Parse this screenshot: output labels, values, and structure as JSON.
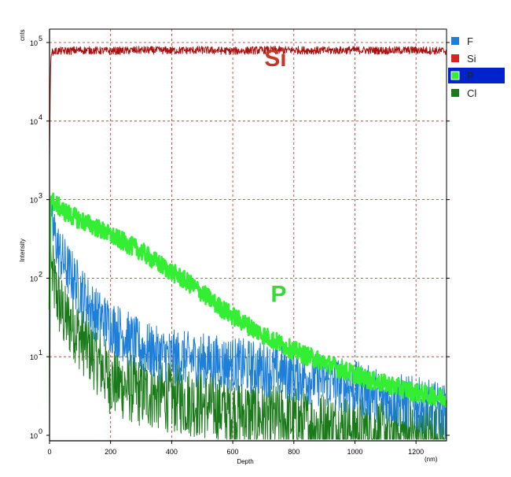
{
  "chart_data": {
    "type": "line",
    "title": "",
    "xlabel": "Depth",
    "ylabel": "Intensity",
    "y_unit": "cnts",
    "x_unit": "(nm)",
    "xlim": [
      0,
      1300
    ],
    "ylim": [
      0.8,
      100000
    ],
    "x_scale": "linear",
    "y_scale": "log",
    "grid": true,
    "legend_position": "right",
    "x_ticks": [
      0,
      200,
      400,
      600,
      800,
      1000,
      1200
    ],
    "y_ticks": [
      {
        "value": 1,
        "base": "10",
        "exp": "0"
      },
      {
        "value": 10,
        "base": "10",
        "exp": "1"
      },
      {
        "value": 100,
        "base": "10",
        "exp": "2"
      },
      {
        "value": 1000,
        "base": "10",
        "exp": "3"
      },
      {
        "value": 10000,
        "base": "10",
        "exp": "4"
      },
      {
        "value": 100000,
        "base": "10",
        "exp": "5"
      }
    ],
    "legend": [
      {
        "name": "F",
        "color": "#1e7fd8",
        "selected": false
      },
      {
        "name": "Si",
        "color": "#dd2222",
        "selected": false
      },
      {
        "name": "P",
        "color": "#33ee33",
        "selected": true
      },
      {
        "name": "Cl",
        "color": "#1a7a1a",
        "selected": false
      }
    ],
    "annotations": [
      {
        "text": "Si",
        "x": 740,
        "y": 60000,
        "color": "#c0392b"
      },
      {
        "text": "P",
        "x": 750,
        "y": 60,
        "color": "#33dd33"
      }
    ],
    "series": [
      {
        "name": "Si",
        "color": "#aa1111",
        "x": [
          0,
          2,
          4,
          6,
          10,
          20,
          50,
          100,
          200,
          300,
          400,
          500,
          600,
          700,
          800,
          900,
          1000,
          1100,
          1200,
          1300
        ],
        "values": [
          3000,
          20000,
          60000,
          70000,
          75000,
          78000,
          78000,
          80000,
          78000,
          80000,
          79000,
          80000,
          78000,
          80000,
          80000,
          79000,
          80000,
          79000,
          80000,
          78000
        ]
      },
      {
        "name": "P",
        "color": "#33ee33",
        "x": [
          0,
          3,
          6,
          10,
          50,
          100,
          150,
          200,
          250,
          300,
          350,
          400,
          450,
          500,
          550,
          600,
          650,
          700,
          750,
          800,
          850,
          900,
          950,
          1000,
          1050,
          1100,
          1150,
          1200,
          1250,
          1300
        ],
        "values": [
          40,
          800,
          1100,
          950,
          700,
          550,
          450,
          350,
          280,
          220,
          160,
          120,
          90,
          65,
          45,
          33,
          25,
          19,
          15,
          12,
          10,
          8.5,
          7,
          6,
          5,
          4.5,
          4,
          3.5,
          3.2,
          3
        ]
      },
      {
        "name": "F",
        "color": "#1e7fd8",
        "x": [
          0,
          3,
          6,
          10,
          30,
          50,
          100,
          150,
          200,
          250,
          300,
          350,
          400,
          500,
          600,
          700,
          800,
          900,
          1000,
          1100,
          1200,
          1300
        ],
        "values": [
          10,
          500,
          700,
          450,
          220,
          150,
          70,
          35,
          25,
          18,
          13,
          11,
          10,
          9,
          8,
          7,
          6,
          5,
          4,
          3,
          2.5,
          2
        ]
      },
      {
        "name": "Cl",
        "color": "#1a7a1a",
        "x": [
          0,
          3,
          6,
          10,
          30,
          50,
          80,
          100,
          150,
          200,
          300,
          400,
          500,
          600,
          700,
          800,
          900,
          1000,
          1100,
          1200,
          1300
        ],
        "values": [
          1,
          300,
          150,
          100,
          50,
          30,
          25,
          18,
          10,
          5,
          3.5,
          3,
          2.5,
          2,
          1.7,
          1.5,
          1.3,
          1.2,
          1.1,
          1,
          1
        ]
      }
    ]
  }
}
